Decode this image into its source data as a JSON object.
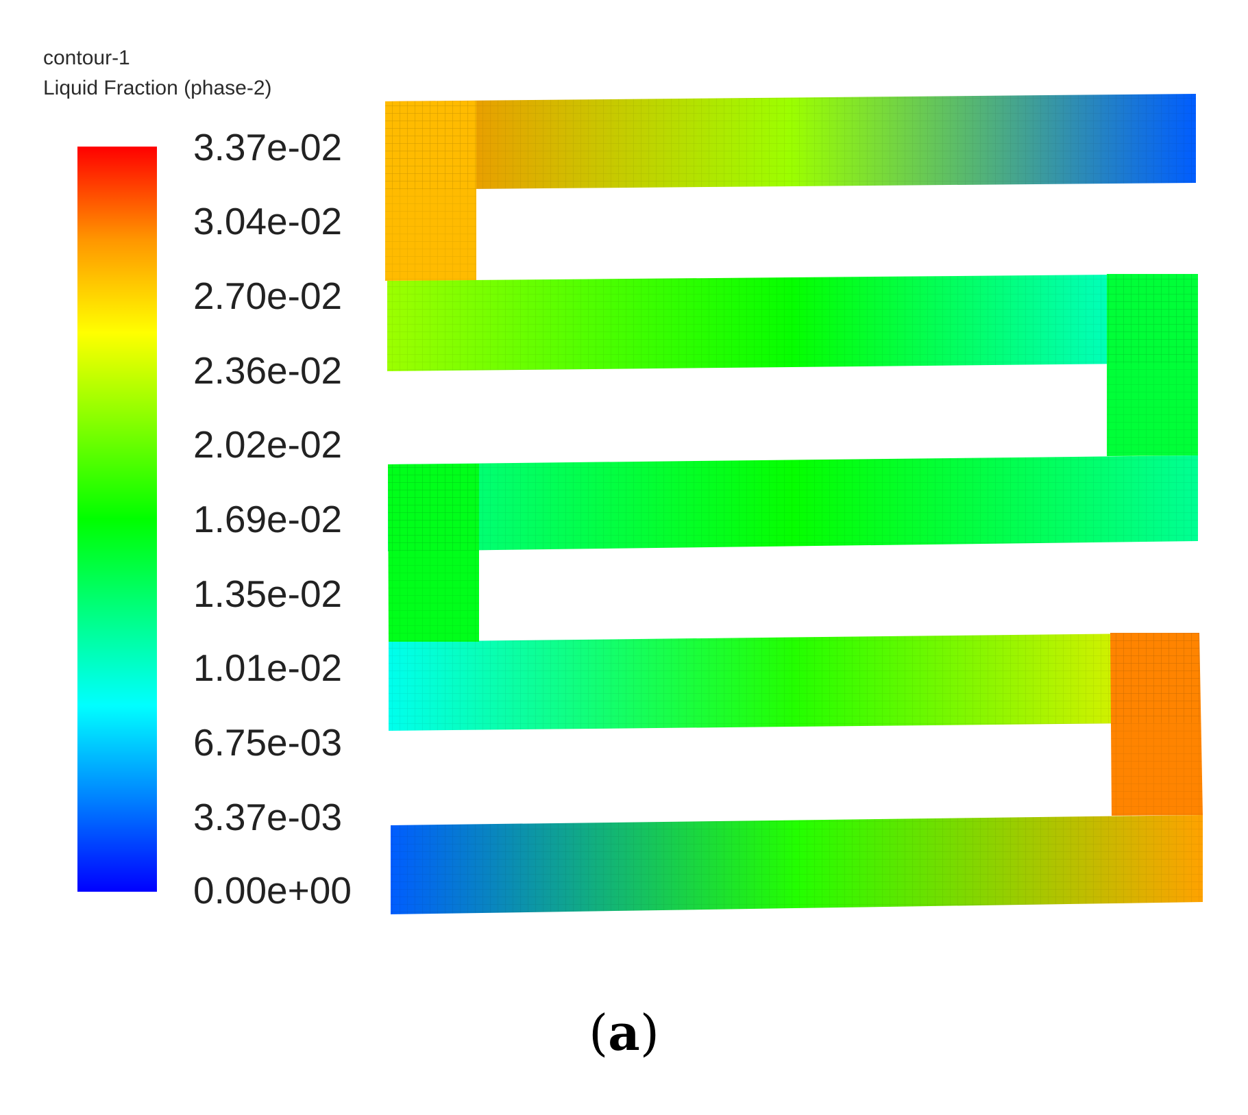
{
  "legend": {
    "title": "contour-1",
    "variable": "Liquid Fraction (phase-2)",
    "colormap": [
      "#0000ff",
      "#0082ff",
      "#00ffff",
      "#00ff80",
      "#00ff00",
      "#80ff00",
      "#ffff00",
      "#ff9600",
      "#ff0000"
    ]
  },
  "chart_data": {
    "type": "heatmap",
    "title": "contour-1",
    "variable": "Liquid Fraction (phase-2)",
    "range": [
      0.0,
      0.0337
    ],
    "tick_labels": [
      "3.37e-02",
      "3.04e-02",
      "2.70e-02",
      "2.36e-02",
      "2.02e-02",
      "1.69e-02",
      "1.35e-02",
      "1.01e-02",
      "6.75e-03",
      "3.37e-03",
      "0.00e+00"
    ],
    "tick_values": [
      0.0337,
      0.0304,
      0.027,
      0.0236,
      0.0202,
      0.0169,
      0.0135,
      0.0101,
      0.00675,
      0.00337,
      0.0
    ],
    "region_values": {
      "channel_1_left": 0.03,
      "channel_1_mid": 0.022,
      "channel_1_right": 0.003,
      "bend_1": 0.028,
      "channel_2_left": 0.022,
      "channel_2_mid": 0.017,
      "channel_2_right": 0.009,
      "bend_2": 0.015,
      "channel_3_left": 0.012,
      "channel_3_mid": 0.017,
      "channel_3_right": 0.012,
      "bend_3": 0.016,
      "channel_4_left": 0.009,
      "channel_4_mid": 0.018,
      "channel_4_right": 0.026,
      "bend_4": 0.03,
      "channel_5_left": 0.003,
      "channel_5_mid": 0.018,
      "channel_5_right": 0.029
    },
    "colorbar": "vertical-left"
  },
  "caption": {
    "open": "(",
    "label": "a",
    "close": ")"
  }
}
